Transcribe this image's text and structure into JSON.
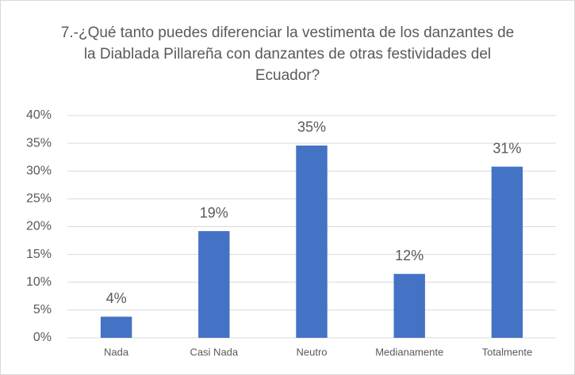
{
  "chart_data": {
    "type": "bar",
    "title": "7.-¿Qué tanto puedes diferenciar la vestimenta de los danzantes de la Diablada Pillareña con danzantes de otras festividades del Ecuador?",
    "categories": [
      "Nada",
      "Casi Nada",
      "Neutro",
      "Medianamente",
      "Totalmente"
    ],
    "values": [
      3.8,
      19.2,
      34.6,
      11.5,
      30.8
    ],
    "value_labels": [
      "4%",
      "19%",
      "35%",
      "12%",
      "31%"
    ],
    "color": "#4472c4",
    "ylim": [
      0,
      40
    ],
    "yticks": [
      {
        "value": 0,
        "label": "0%"
      },
      {
        "value": 5,
        "label": "5%"
      },
      {
        "value": 10,
        "label": "10%"
      },
      {
        "value": 15,
        "label": "15%"
      },
      {
        "value": 20,
        "label": "20%"
      },
      {
        "value": 25,
        "label": "25%"
      },
      {
        "value": 30,
        "label": "30%"
      },
      {
        "value": 35,
        "label": "35%"
      },
      {
        "value": 40,
        "label": "40%"
      }
    ],
    "grid": true
  }
}
